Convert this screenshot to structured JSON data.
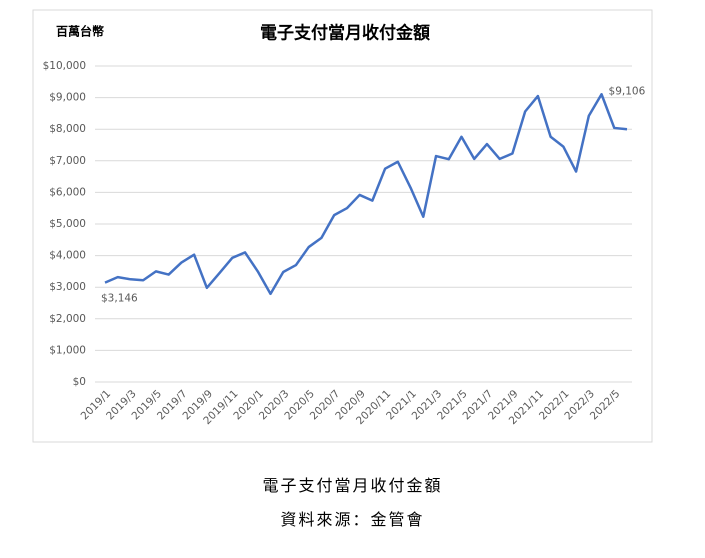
{
  "chart_data": {
    "type": "line",
    "title": "電子支付當月收付金額",
    "y_label": "百萬台幣",
    "categories": [
      "2019/1",
      null,
      "2019/3",
      null,
      "2019/5",
      null,
      "2019/7",
      null,
      "2019/9",
      null,
      "2019/11",
      null,
      "2020/1",
      null,
      "2020/3",
      null,
      "2020/5",
      null,
      "2020/7",
      null,
      "2020/9",
      null,
      "2020/11",
      null,
      "2021/1",
      null,
      "2021/3",
      null,
      "2021/5",
      null,
      "2021/7",
      null,
      "2021/9",
      null,
      "2021/11",
      null,
      "2022/1",
      null,
      "2022/3",
      null,
      "2022/5",
      null
    ],
    "values": [
      3146,
      3320,
      3250,
      3220,
      3500,
      3400,
      3780,
      4030,
      2980,
      3450,
      3930,
      4100,
      3500,
      2790,
      3480,
      3700,
      4270,
      4560,
      5280,
      5500,
      5920,
      5740,
      6750,
      6970,
      6150,
      5230,
      7150,
      7050,
      7760,
      7060,
      7530,
      7060,
      7230,
      8560,
      9050,
      7760,
      7450,
      6660,
      8420,
      9106,
      8040,
      8000
    ],
    "value_labels": [
      "$3,146",
      null,
      null,
      null,
      null,
      null,
      null,
      null,
      null,
      null,
      null,
      null,
      null,
      null,
      null,
      null,
      null,
      null,
      null,
      null,
      null,
      null,
      null,
      null,
      null,
      null,
      null,
      null,
      null,
      null,
      null,
      null,
      null,
      null,
      null,
      null,
      null,
      null,
      null,
      "$9,106",
      null,
      null
    ],
    "color": "#4472c4",
    "ylim": [
      0,
      10000
    ],
    "yticks": [
      {
        "value": 0,
        "label": "$0"
      },
      {
        "value": 1000,
        "label": "$1,000"
      },
      {
        "value": 2000,
        "label": "$2,000"
      },
      {
        "value": 3000,
        "label": "$3,000"
      },
      {
        "value": 4000,
        "label": "$4,000"
      },
      {
        "value": 5000,
        "label": "$5,000"
      },
      {
        "value": 6000,
        "label": "$6,000"
      },
      {
        "value": 7000,
        "label": "$7,000"
      },
      {
        "value": 8000,
        "label": "$8,000"
      },
      {
        "value": 9000,
        "label": "$9,000"
      },
      {
        "value": 10000,
        "label": "$10,000"
      }
    ],
    "grid": true
  },
  "caption": {
    "title": "電子支付當月收付金額",
    "source": "資料來源：金管會"
  }
}
